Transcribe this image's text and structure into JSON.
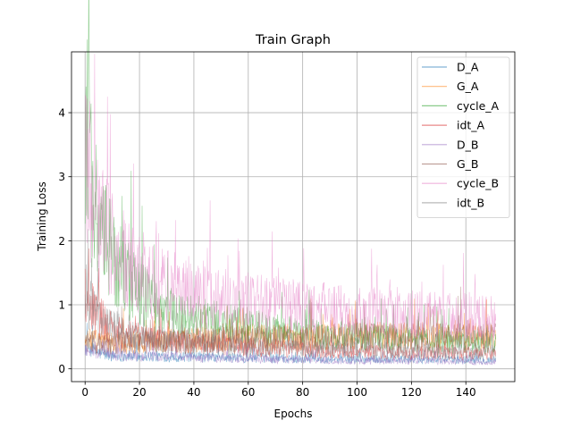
{
  "chart_data": {
    "type": "line",
    "title": "Train Graph",
    "xlabel": "Epochs",
    "ylabel": "Training Loss",
    "xlim": [
      -5,
      158
    ],
    "ylim": [
      -0.2,
      4.95
    ],
    "xticks": [
      0,
      20,
      40,
      60,
      80,
      100,
      120,
      140
    ],
    "yticks": [
      0,
      1,
      2,
      3,
      4
    ],
    "grid": true,
    "legend_position": "top-right",
    "epoch_range": [
      0,
      151
    ],
    "series": [
      {
        "name": "D_A",
        "color": "#1f77b4",
        "x": [
          0,
          1,
          2,
          5,
          10,
          20,
          40,
          60,
          80,
          100,
          120,
          140,
          151
        ],
        "y": [
          0.3,
          0.35,
          0.3,
          0.25,
          0.2,
          0.2,
          0.18,
          0.17,
          0.16,
          0.15,
          0.15,
          0.14,
          0.14
        ]
      },
      {
        "name": "G_A",
        "color": "#ff7f0e",
        "x": [
          0,
          1,
          2,
          5,
          10,
          20,
          40,
          60,
          80,
          100,
          120,
          140,
          151
        ],
        "y": [
          0.4,
          0.55,
          0.45,
          0.42,
          0.4,
          0.42,
          0.45,
          0.48,
          0.5,
          0.5,
          0.52,
          0.5,
          0.5
        ]
      },
      {
        "name": "cycle_A",
        "color": "#2ca02c",
        "x": [
          0,
          1,
          2,
          5,
          10,
          15,
          20,
          30,
          40,
          60,
          80,
          100,
          120,
          140,
          151
        ],
        "y": [
          3.4,
          4.2,
          3.0,
          2.2,
          1.8,
          1.4,
          1.2,
          0.9,
          0.8,
          0.65,
          0.55,
          0.5,
          0.45,
          0.42,
          0.4
        ]
      },
      {
        "name": "idt_A",
        "color": "#d62728",
        "x": [
          0,
          1,
          2,
          5,
          10,
          20,
          40,
          60,
          80,
          100,
          120,
          140,
          151
        ],
        "y": [
          1.3,
          1.2,
          1.0,
          0.8,
          0.6,
          0.5,
          0.4,
          0.33,
          0.3,
          0.27,
          0.25,
          0.24,
          0.23
        ]
      },
      {
        "name": "D_B",
        "color": "#9467bd",
        "x": [
          0,
          1,
          2,
          5,
          10,
          20,
          40,
          60,
          80,
          100,
          120,
          140,
          151
        ],
        "y": [
          0.32,
          0.3,
          0.28,
          0.25,
          0.22,
          0.2,
          0.17,
          0.15,
          0.14,
          0.12,
          0.12,
          0.11,
          0.11
        ]
      },
      {
        "name": "G_B",
        "color": "#8c564b",
        "x": [
          0,
          1,
          2,
          5,
          10,
          20,
          40,
          60,
          80,
          100,
          120,
          140,
          151
        ],
        "y": [
          0.4,
          0.45,
          0.42,
          0.4,
          0.4,
          0.42,
          0.45,
          0.47,
          0.48,
          0.5,
          0.5,
          0.5,
          0.5
        ]
      },
      {
        "name": "cycle_B",
        "color": "#e377c2",
        "x": [
          0,
          1,
          2,
          5,
          10,
          15,
          20,
          30,
          40,
          60,
          80,
          100,
          120,
          140,
          151
        ],
        "y": [
          3.5,
          3.3,
          2.8,
          2.3,
          1.9,
          1.6,
          1.45,
          1.3,
          1.2,
          1.05,
          0.95,
          0.9,
          0.85,
          0.82,
          0.8
        ]
      },
      {
        "name": "idt_B",
        "color": "#7f7f7f",
        "x": [
          0,
          1,
          2,
          5,
          10,
          20,
          40,
          60,
          80,
          100,
          120,
          140,
          151
        ],
        "y": [
          1.4,
          1.1,
          0.95,
          0.8,
          0.65,
          0.5,
          0.4,
          0.35,
          0.32,
          0.3,
          0.28,
          0.27,
          0.26
        ]
      }
    ]
  }
}
